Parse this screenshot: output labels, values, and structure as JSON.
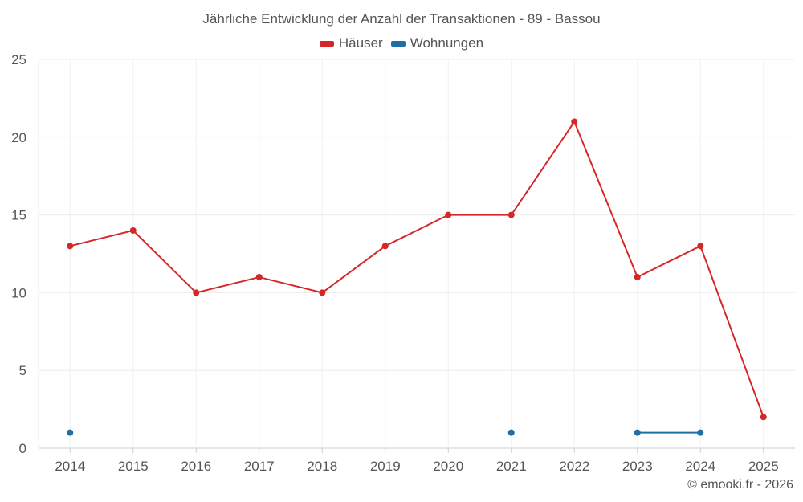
{
  "chart_data": {
    "type": "line",
    "title": "Jährliche Entwicklung der Anzahl der Transaktionen - 89 - Bassou",
    "xlabel": "",
    "ylabel": "",
    "categories": [
      "2014",
      "2015",
      "2016",
      "2017",
      "2018",
      "2019",
      "2020",
      "2021",
      "2022",
      "2023",
      "2024",
      "2025"
    ],
    "ylim": [
      0,
      25
    ],
    "yticks": [
      0,
      5,
      10,
      15,
      20,
      25
    ],
    "grid": true,
    "legend_position": "top-center",
    "series": [
      {
        "name": "Häuser",
        "color": "#d62728",
        "values": [
          13,
          14,
          10,
          11,
          10,
          13,
          15,
          15,
          21,
          11,
          13,
          2
        ]
      },
      {
        "name": "Wohnungen",
        "color": "#1f6fa5",
        "values": [
          1,
          null,
          null,
          null,
          null,
          null,
          null,
          1,
          null,
          1,
          1,
          null
        ]
      }
    ]
  },
  "credit": "© emooki.fr - 2026"
}
